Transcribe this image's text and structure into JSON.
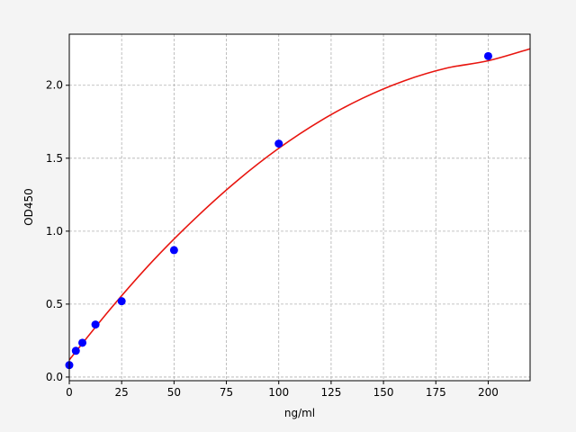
{
  "chart_data": {
    "type": "scatter",
    "title": "",
    "xlabel": "ng/ml",
    "ylabel": "OD450",
    "xlim": [
      0,
      220
    ],
    "ylim": [
      -0.025,
      2.35
    ],
    "xticks": [
      0,
      25,
      50,
      75,
      100,
      125,
      150,
      175,
      200
    ],
    "yticks": [
      0.0,
      0.5,
      1.0,
      1.5,
      2.0
    ],
    "xtick_labels": [
      "0",
      "25",
      "50",
      "75",
      "100",
      "125",
      "150",
      "175",
      "200"
    ],
    "ytick_labels": [
      "0.0",
      "0.5",
      "1.0",
      "1.5",
      "2.0"
    ],
    "grid": true,
    "points": {
      "color": "#0000ff",
      "x": [
        0,
        3.125,
        6.25,
        12.5,
        25,
        50,
        100,
        200
      ],
      "y": [
        0.082,
        0.18,
        0.235,
        0.36,
        0.52,
        0.87,
        1.6,
        2.2
      ]
    },
    "fit_curve": {
      "color": "#e8150f",
      "x": [
        0,
        20,
        40,
        60,
        80,
        100,
        120,
        140,
        160,
        180,
        200,
        220
      ],
      "y": [
        0.118,
        0.473,
        0.798,
        1.086,
        1.344,
        1.568,
        1.757,
        1.911,
        2.031,
        2.117,
        2.168,
        2.25
      ]
    }
  }
}
